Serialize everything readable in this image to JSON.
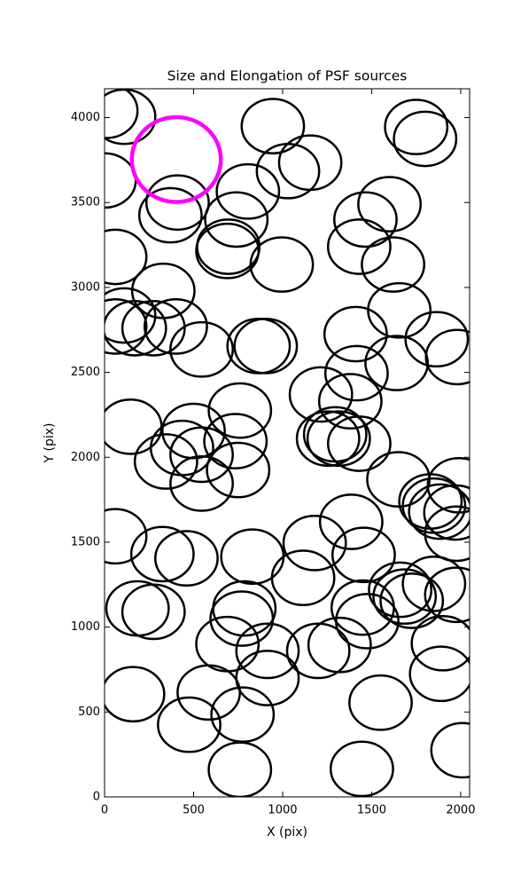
{
  "chart_data": {
    "type": "ellipse",
    "title": "Size and Elongation of PSF sources",
    "x_label": "X (pix)",
    "y_label": "Y (pix)",
    "xlim": [
      0,
      2050
    ],
    "ylim": [
      0,
      4170
    ],
    "xticks": [
      0,
      500,
      1000,
      1500,
      2000
    ],
    "yticks": [
      0,
      500,
      1000,
      1500,
      2000,
      2500,
      3000,
      3500,
      4000
    ],
    "series": [
      {
        "color": "#000000",
        "width": 350,
        "height": 320,
        "x": [
          110,
          10,
          945,
          1750,
          1800,
          1155,
          1030,
          805,
          410,
          370,
          740,
          1600,
          1465,
          695,
          690,
          1430,
          1620,
          995,
          60,
          0,
          330,
          110,
          60,
          170,
          275,
          400,
          545,
          865,
          905,
          1655,
          1410,
          1865,
          1980,
          1640,
          1415,
          1215,
          1380,
          760,
          145,
          500,
          735,
          435,
          545,
          345,
          750,
          545,
          1295,
          1315,
          1255,
          1430,
          1650,
          1990,
          1830,
          1850,
          1885,
          1970,
          1975,
          60,
          325,
          460,
          830,
          1180,
          1385,
          1455,
          1115,
          1450,
          1475,
          1660,
          1685,
          1725,
          1850,
          1975,
          185,
          275,
          785,
          770,
          690,
          915,
          1320,
          1200,
          1900,
          1890,
          915,
          585,
          160,
          775,
          475,
          1550,
          760,
          1445,
          2010
        ],
        "y": [
          4005,
          4040,
          3950,
          3945,
          3875,
          3735,
          3685,
          3565,
          3500,
          3425,
          3400,
          3490,
          3400,
          3240,
          3215,
          3240,
          3135,
          3135,
          3180,
          3630,
          2980,
          2835,
          2770,
          2760,
          2760,
          2770,
          2635,
          2655,
          2655,
          2865,
          2725,
          2695,
          2590,
          2555,
          2495,
          2370,
          2330,
          2275,
          2180,
          2155,
          2095,
          2055,
          2015,
          1975,
          1925,
          1845,
          2135,
          2110,
          2110,
          2080,
          1870,
          1835,
          1740,
          1715,
          1680,
          1675,
          1550,
          1535,
          1430,
          1405,
          1415,
          1495,
          1620,
          1425,
          1290,
          1115,
          1035,
          1220,
          1180,
          1155,
          1255,
          1190,
          1110,
          1090,
          1110,
          1050,
          900,
          860,
          895,
          860,
          905,
          725,
          700,
          615,
          605,
          485,
          425,
          555,
          160,
          165,
          275
        ]
      },
      {
        "color": "#ff00ff",
        "width": 500,
        "height": 500,
        "x": [
          403
        ],
        "y": [
          3753
        ]
      }
    ]
  }
}
